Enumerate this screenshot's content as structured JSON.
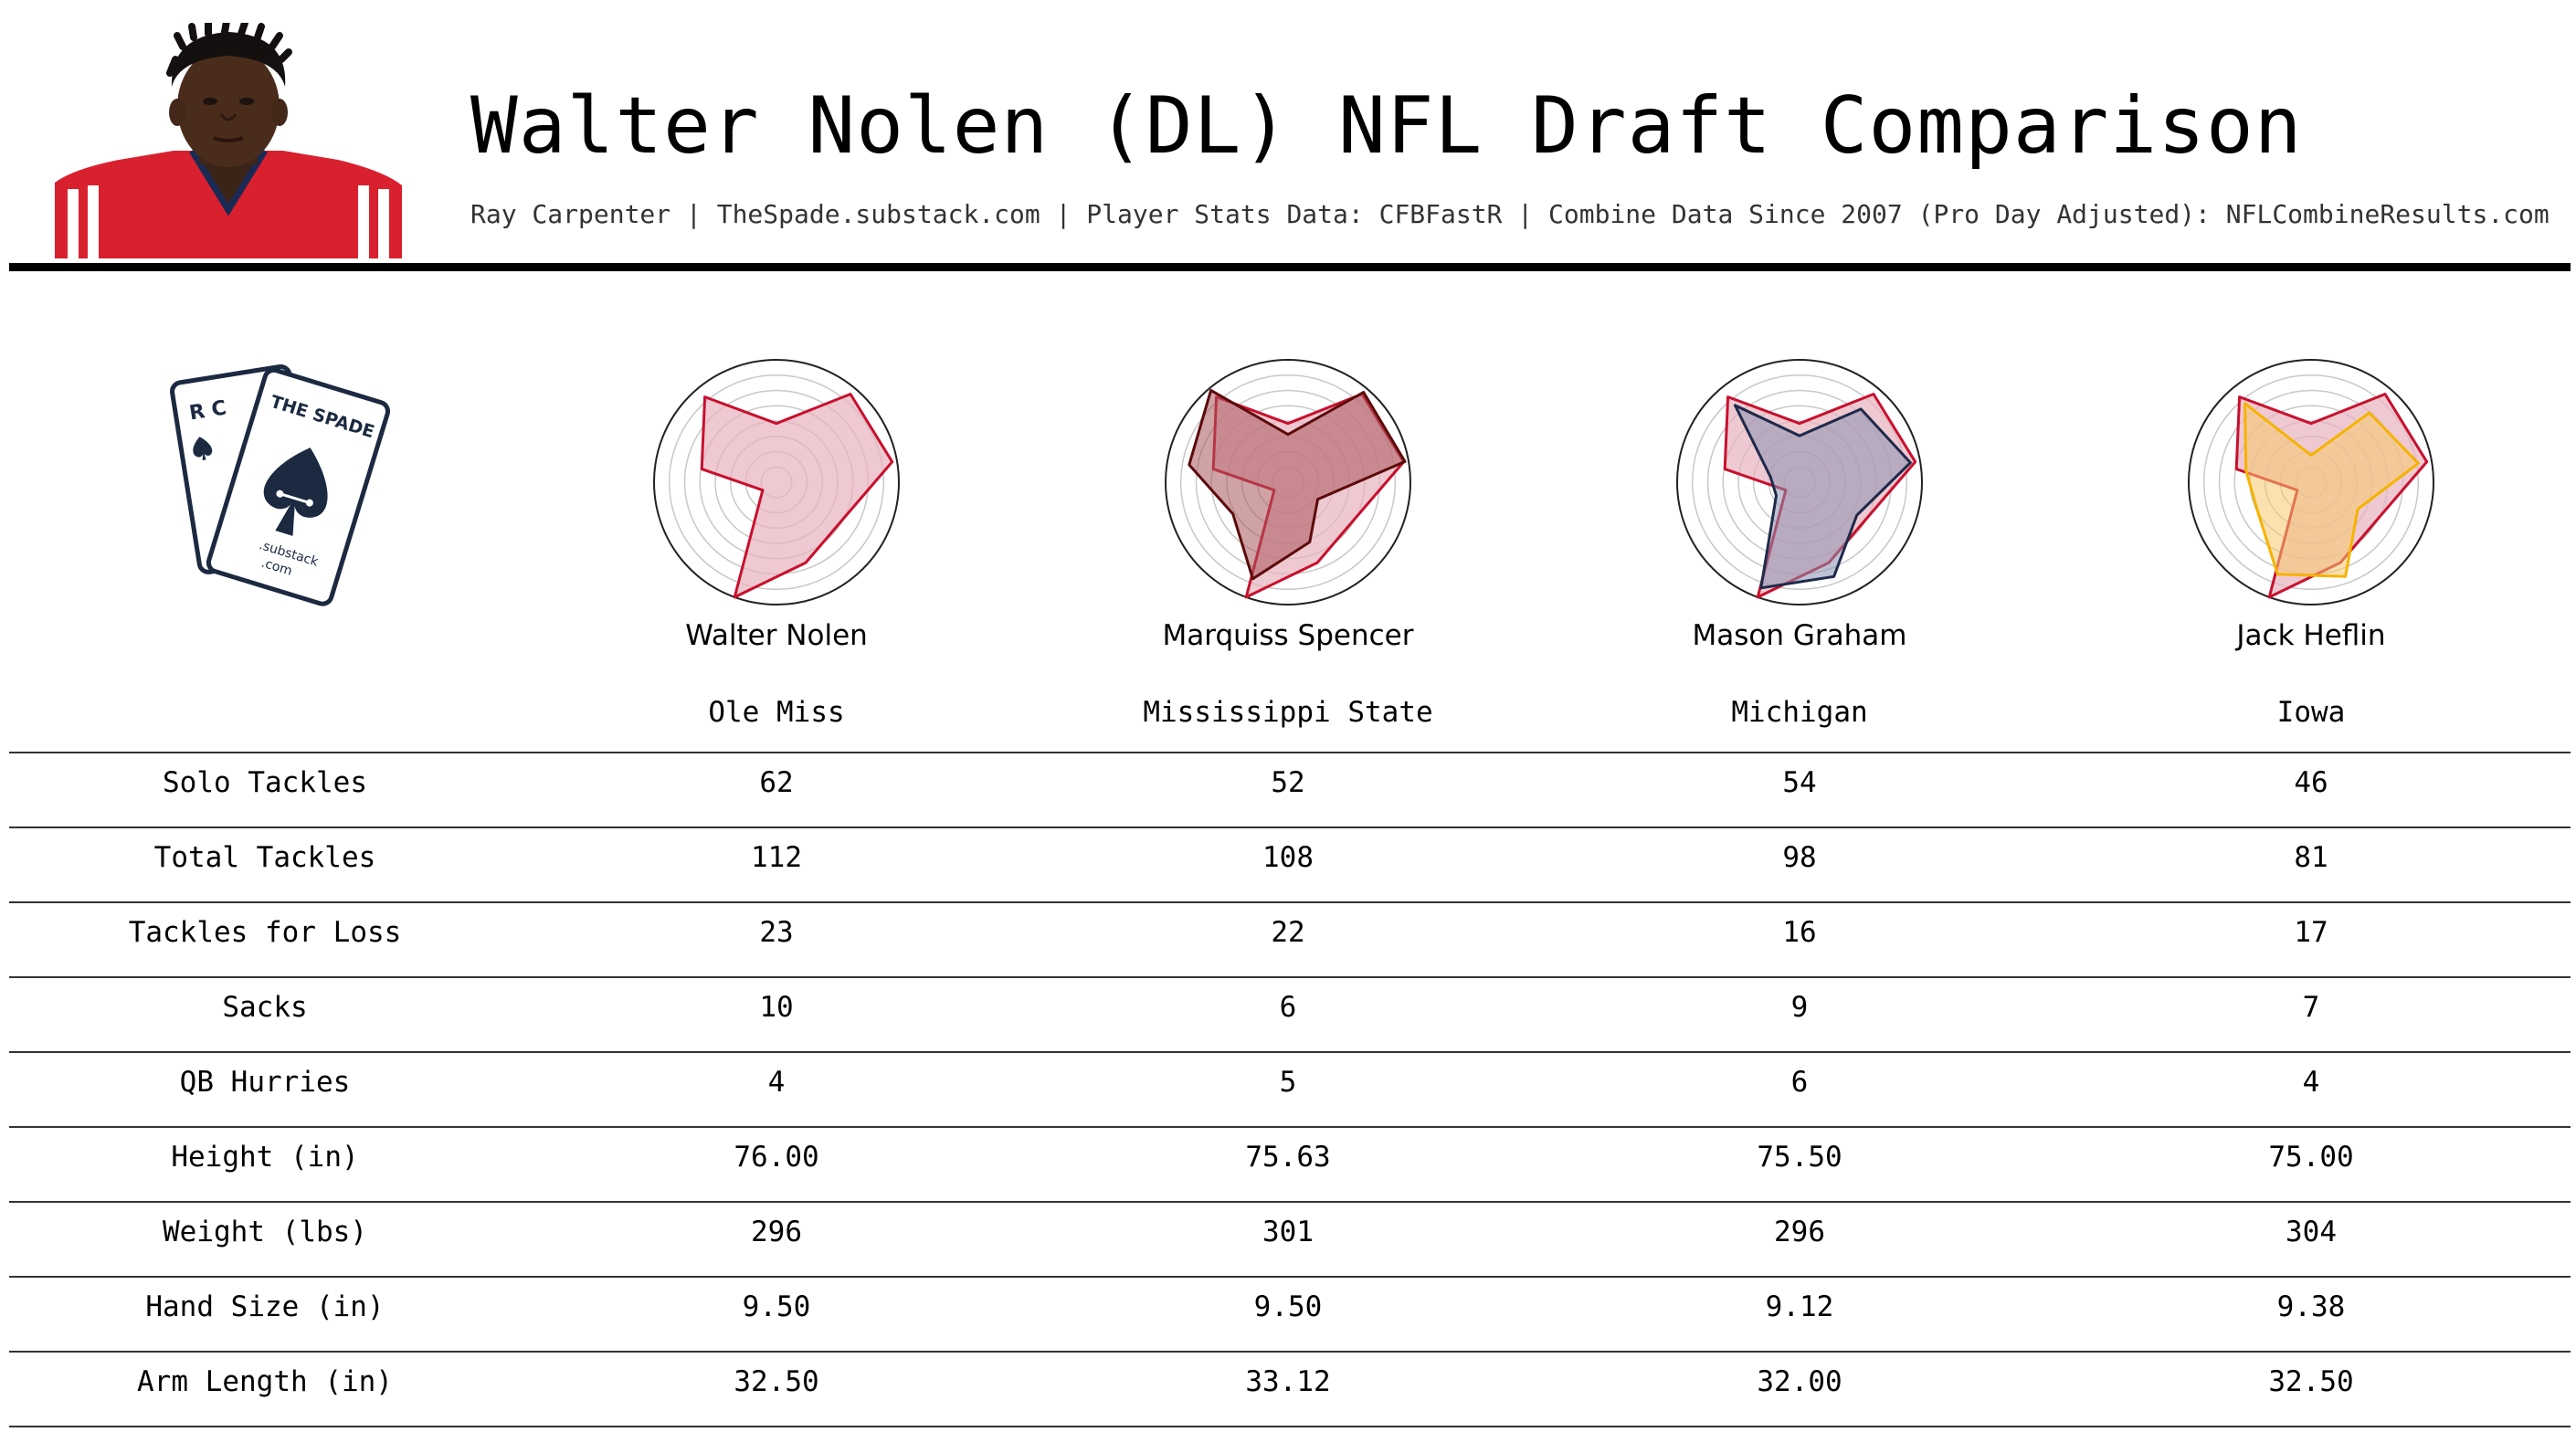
{
  "header": {
    "title": "Walter Nolen (DL) NFL Draft Comparison",
    "subtitle": "Ray Carpenter | TheSpade.substack.com | Player Stats Data: CFBFastR | Combine Data Since 2007 (Pro Day Adjusted): NFLCombineResults.com"
  },
  "logo": {
    "back_card_letters": "R C",
    "front_card_letters": "THE SPADE",
    "tagline_1": ".substack",
    "tagline_2": ".com"
  },
  "colors": {
    "base_fill": "#e8b2bd",
    "base_stroke": "#c8102e",
    "comp_strokes": [
      "#c8102e",
      "#5c0a0a",
      "#1e2a4a",
      "#f5b301"
    ],
    "comp_fills": [
      "#f3c6cf",
      "#a8565b",
      "#8a8fb0",
      "#f7c86e"
    ],
    "ink": "#1b2a41"
  },
  "chart_data": {
    "type": "table",
    "players": [
      {
        "name": "Walter Nolen",
        "school": "Ole Miss"
      },
      {
        "name": "Marquiss Spencer",
        "school": "Mississippi State"
      },
      {
        "name": "Mason Graham",
        "school": "Michigan"
      },
      {
        "name": "Jack Heflin",
        "school": "Iowa"
      }
    ],
    "rows": [
      {
        "label": "Solo Tackles",
        "values": [
          "62",
          "52",
          "54",
          "46"
        ]
      },
      {
        "label": "Total Tackles",
        "values": [
          "112",
          "108",
          "98",
          "81"
        ]
      },
      {
        "label": "Tackles for Loss",
        "values": [
          "23",
          "22",
          "16",
          "17"
        ]
      },
      {
        "label": "Sacks",
        "values": [
          "10",
          "6",
          "9",
          "7"
        ]
      },
      {
        "label": "QB Hurries",
        "values": [
          "4",
          "5",
          "6",
          "4"
        ]
      },
      {
        "label": "Height (in)",
        "values": [
          "76.00",
          "75.63",
          "75.50",
          "75.00"
        ]
      },
      {
        "label": "Weight (lbs)",
        "values": [
          "296",
          "301",
          "296",
          "304"
        ]
      },
      {
        "label": "Hand Size (in)",
        "values": [
          "9.50",
          "9.50",
          "9.12",
          "9.38"
        ]
      },
      {
        "label": "Arm Length (in)",
        "values": [
          "32.50",
          "33.12",
          "32.00",
          "32.50"
        ]
      }
    ],
    "radar": {
      "rings": 8,
      "max": 1.0,
      "baseline": [
        0.48,
        0.94,
        0.96,
        0.62,
        0.7,
        1.0,
        0.13,
        0.62,
        0.91
      ],
      "comparisons": [
        [
          0.48,
          0.94,
          0.96,
          0.62,
          0.7,
          1.0,
          0.13,
          0.62,
          0.91
        ],
        [
          0.39,
          0.96,
          0.97,
          0.28,
          0.52,
          0.84,
          0.52,
          0.82,
          0.98
        ],
        [
          0.38,
          0.78,
          0.92,
          0.54,
          0.82,
          0.92,
          0.22,
          0.24,
          0.82
        ],
        [
          0.22,
          0.74,
          0.89,
          0.44,
          0.82,
          0.8,
          0.5,
          0.54,
          0.84
        ]
      ]
    }
  }
}
